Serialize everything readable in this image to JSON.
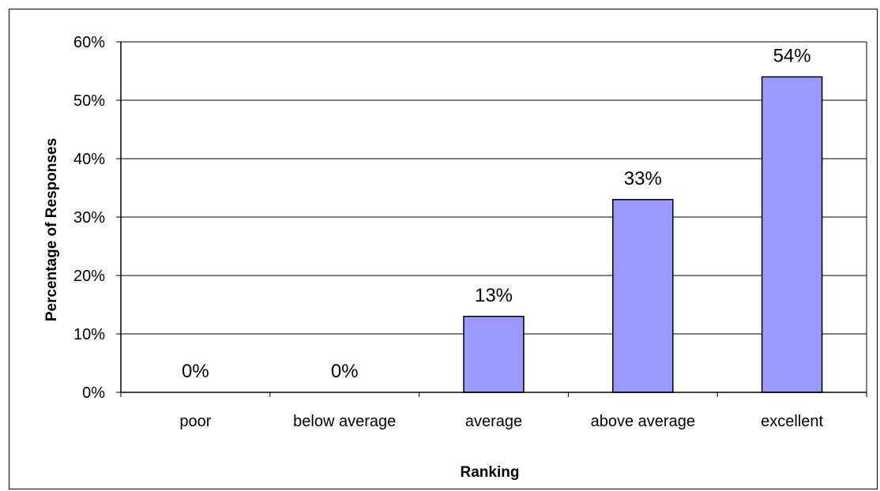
{
  "chart_data": {
    "type": "bar",
    "title": "",
    "xlabel": "Ranking",
    "ylabel": "Percentage of Responses",
    "categories": [
      "poor",
      "below average",
      "average",
      "above average",
      "excellent"
    ],
    "values": [
      0,
      0,
      13,
      33,
      54
    ],
    "data_labels": [
      "0%",
      "0%",
      "13%",
      "33%",
      "54%"
    ],
    "ylim": [
      0,
      60
    ],
    "y_ticks": [
      0,
      10,
      20,
      30,
      40,
      50,
      60
    ],
    "y_tick_labels": [
      "0%",
      "10%",
      "20%",
      "30%",
      "40%",
      "50%",
      "60%"
    ],
    "grid": "horizontal",
    "legend": "none",
    "colors": {
      "bar_fill": "#9999ff",
      "bar_stroke": "#000000",
      "gridline": "#000000",
      "axis": "#000000"
    }
  }
}
